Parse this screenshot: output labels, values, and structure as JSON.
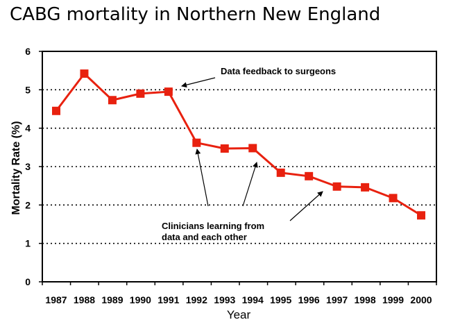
{
  "chart_data": {
    "type": "line",
    "title": "CABG mortality in Northern New England",
    "xlabel": "Year",
    "ylabel": "Mortality Rate (%)",
    "ylim": [
      0,
      6
    ],
    "yticks": [
      "0",
      "1",
      "2",
      "3",
      "4",
      "5",
      "6"
    ],
    "grid": "horizontal dotted",
    "categories": [
      "1987",
      "1988",
      "1989",
      "1990",
      "1991",
      "1992",
      "1993",
      "1994",
      "1995",
      "1996",
      "1997",
      "1998",
      "1999",
      "2000"
    ],
    "series": [
      {
        "values": [
          4.45,
          5.42,
          4.73,
          4.9,
          4.95,
          3.62,
          3.47,
          3.48,
          2.84,
          2.75,
          2.48,
          2.46,
          2.18,
          1.73
        ],
        "color": "#e8210f",
        "marker": "square"
      }
    ],
    "annotations": [
      {
        "text": "Data feedback to surgeons"
      },
      {
        "text": "Clinicians learning from"
      },
      {
        "text": "data and each other"
      }
    ]
  }
}
